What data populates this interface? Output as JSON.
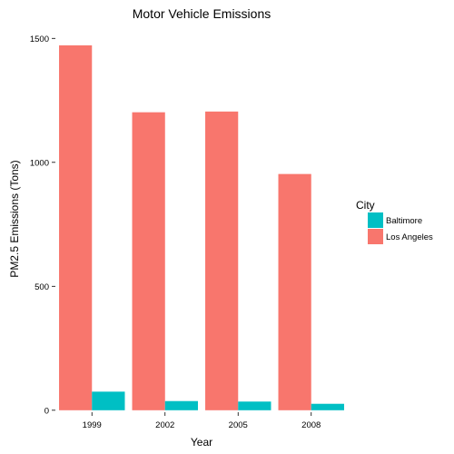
{
  "chart_data": {
    "type": "bar",
    "title": "Motor Vehicle Emissions",
    "xlabel": "Year",
    "ylabel": "PM2.5 Emissions (Tons)",
    "categories": [
      "1999",
      "2002",
      "2005",
      "2008"
    ],
    "series": [
      {
        "name": "Los Angeles",
        "color": "#F8766D",
        "values": [
          1472,
          1202,
          1205,
          953
        ]
      },
      {
        "name": "Baltimore",
        "color": "#00BFC4",
        "values": [
          75,
          37,
          35,
          26
        ]
      }
    ],
    "yticks": [
      0,
      500,
      1000,
      1500
    ],
    "ylim": [
      -8,
      1545
    ],
    "grid": false,
    "legend": {
      "title": "City",
      "entries": [
        "Baltimore",
        "Los Angeles"
      ],
      "position": "right"
    }
  }
}
